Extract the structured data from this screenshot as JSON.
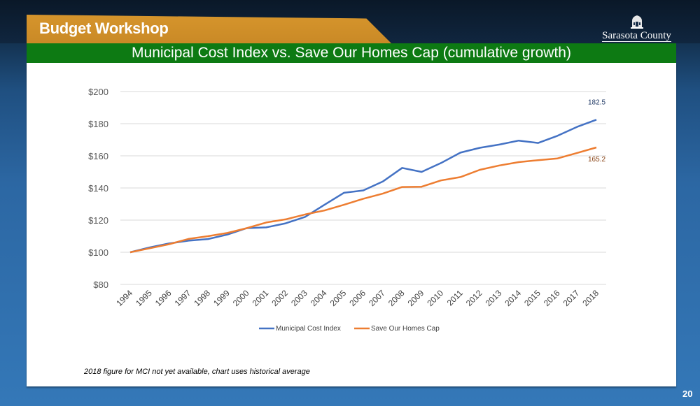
{
  "header": {
    "section_title": "Budget Workshop",
    "slide_title": "Municipal Cost Index vs. Save Our Homes Cap (cumulative growth)",
    "logo_text": "Sarasota County",
    "logo_icon": "courthouse-icon"
  },
  "footer": {
    "note": "2018 figure for MCI not yet available, chart uses historical average",
    "page_number": "20"
  },
  "colors": {
    "mci": "#4472C4",
    "soh": "#ED7D31",
    "header_orange": "#D6952C",
    "header_green": "#0D7A13"
  },
  "chart_data": {
    "type": "line",
    "title": "Municipal Cost Index vs. Save Our Homes Cap (cumulative growth)",
    "xlabel": "",
    "ylabel": "",
    "ylim": [
      80,
      200
    ],
    "yticks": [
      80,
      100,
      120,
      140,
      160,
      180,
      200
    ],
    "ytick_labels": [
      "$80",
      "$100",
      "$120",
      "$140",
      "$160",
      "$180",
      "$200"
    ],
    "grid": true,
    "legend": "bottom",
    "categories": [
      "1994",
      "1995",
      "1996",
      "1997",
      "1998",
      "1999",
      "2000",
      "2001",
      "2002",
      "2003",
      "2004",
      "2005",
      "2006",
      "2007",
      "2008",
      "2009",
      "2010",
      "2011",
      "2012",
      "2013",
      "2014",
      "2015",
      "2016",
      "2017",
      "2018"
    ],
    "series": [
      {
        "name": "Municipal Cost Index",
        "color": "#4472C4",
        "values": [
          100,
          103,
          105.5,
          107.2,
          108.2,
          111,
          115,
          115.5,
          118,
          122,
          129.5,
          137,
          138.5,
          144,
          152.5,
          150,
          155.5,
          162,
          165,
          167,
          169.5,
          168,
          172.5,
          178,
          182.5
        ],
        "end_label": "182.5"
      },
      {
        "name": "Save Our Homes Cap",
        "color": "#ED7D31",
        "values": [
          100,
          102.5,
          105,
          108.3,
          110,
          112,
          115,
          118.5,
          120.5,
          123.5,
          126,
          129.5,
          133.3,
          136.5,
          140.6,
          140.8,
          144.7,
          146.8,
          151.3,
          154,
          156.1,
          157.3,
          158.4,
          161.8,
          165.2
        ],
        "end_label": "165.2"
      }
    ]
  }
}
